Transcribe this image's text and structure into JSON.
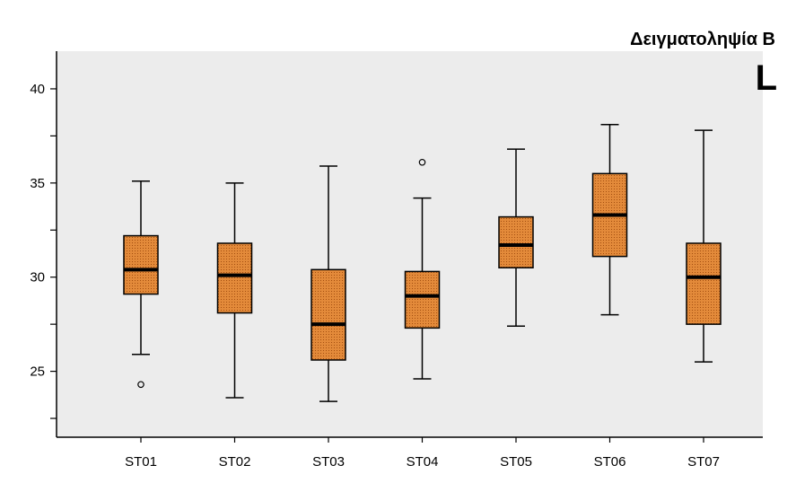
{
  "chart_data": {
    "type": "boxplot",
    "title": "Δειγματοληψία Β",
    "panel_label": "L",
    "xlabel": "",
    "ylabel": "",
    "ylim": [
      21.5,
      42
    ],
    "yticks": [
      25,
      30,
      35,
      40
    ],
    "yminor": [
      22.5,
      27.5,
      32.5,
      37.5
    ],
    "grid": false,
    "colors": {
      "box_fill": "#e07a22",
      "plot_bg": "#ececec",
      "stroke": "#000000"
    },
    "categories": [
      "ST01",
      "ST02",
      "ST03",
      "ST04",
      "ST05",
      "ST06",
      "ST07"
    ],
    "boxes": [
      {
        "min": 25.9,
        "q1": 29.1,
        "median": 30.4,
        "q3": 32.2,
        "max": 35.1,
        "outliers": [
          24.3
        ]
      },
      {
        "min": 23.6,
        "q1": 28.1,
        "median": 30.1,
        "q3": 31.8,
        "max": 35.0,
        "outliers": []
      },
      {
        "min": 23.4,
        "q1": 25.6,
        "median": 27.5,
        "q3": 30.4,
        "max": 35.9,
        "outliers": []
      },
      {
        "min": 24.6,
        "q1": 27.3,
        "median": 29.0,
        "q3": 30.3,
        "max": 34.2,
        "outliers": [
          36.1
        ]
      },
      {
        "min": 27.4,
        "q1": 30.5,
        "median": 31.7,
        "q3": 33.2,
        "max": 36.8,
        "outliers": []
      },
      {
        "min": 28.0,
        "q1": 31.1,
        "median": 33.3,
        "q3": 35.5,
        "max": 38.1,
        "outliers": []
      },
      {
        "min": 25.5,
        "q1": 27.5,
        "median": 30.0,
        "q3": 31.8,
        "max": 37.8,
        "outliers": []
      }
    ]
  }
}
